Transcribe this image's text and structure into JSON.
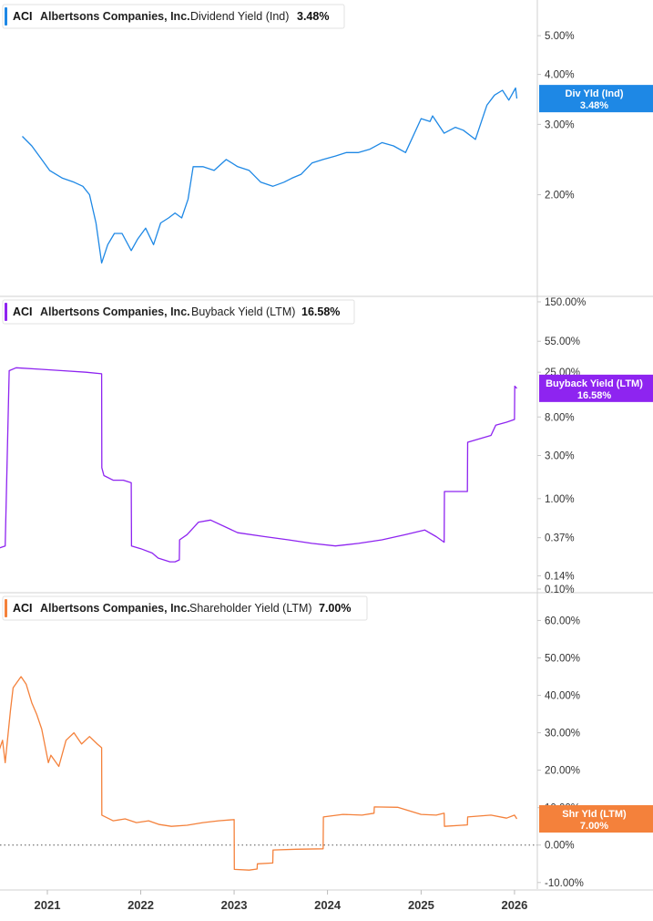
{
  "ticker": "ACI",
  "company": "Albertsons Companies, Inc.",
  "x_axis": {
    "labels": [
      "2021",
      "2022",
      "2023",
      "2024",
      "2025",
      "2026"
    ]
  },
  "chart_data": [
    {
      "type": "line",
      "title": "Dividend Yield (Ind)",
      "current_value": "3.48%",
      "color": "#1e88e5",
      "scale": "log",
      "ylim": [
        1.25,
        5.5
      ],
      "y_ticks": [
        {
          "value": 5.0,
          "label": "5.00%"
        },
        {
          "value": 4.0,
          "label": "4.00%"
        },
        {
          "value": 3.0,
          "label": "3.00%"
        },
        {
          "value": 2.0,
          "label": "2.00%"
        }
      ],
      "badge": {
        "label": "Div Yld (Ind)",
        "value": "3.48%"
      },
      "series": [
        {
          "x": [
            "2020-09-25",
            "2020-11-01",
            "2020-12-10",
            "2021-01-10",
            "2021-03-01",
            "2021-04-15",
            "2021-05-20",
            "2021-06-15",
            "2021-07-10",
            "2021-08-01",
            "2021-08-25",
            "2021-09-20",
            "2021-10-20",
            "2021-11-25",
            "2021-12-20",
            "2022-01-20",
            "2022-02-20",
            "2022-03-20",
            "2022-04-20",
            "2022-05-15",
            "2022-06-10",
            "2022-07-05",
            "2022-07-25",
            "2022-09-01",
            "2022-10-15",
            "2022-12-01",
            "2023-01-15",
            "2023-03-01",
            "2023-04-15",
            "2023-06-01",
            "2023-07-15",
            "2023-08-15",
            "2023-09-20",
            "2023-11-01",
            "2023-12-15",
            "2024-02-01",
            "2024-03-15",
            "2024-05-01",
            "2024-06-15",
            "2024-08-01",
            "2024-09-15",
            "2024-11-01",
            "2025-01-01",
            "2025-02-05",
            "2025-02-15",
            "2025-04-01",
            "2025-05-15",
            "2025-06-15",
            "2025-08-01",
            "2025-09-15",
            "2025-10-15",
            "2025-11-15",
            "2025-12-10",
            "2026-01-05",
            "2026-01-10"
          ],
          "y": [
            2.8,
            2.65,
            2.45,
            2.3,
            2.2,
            2.15,
            2.1,
            2.0,
            1.7,
            1.35,
            1.5,
            1.6,
            1.6,
            1.45,
            1.55,
            1.65,
            1.5,
            1.7,
            1.75,
            1.8,
            1.75,
            1.95,
            2.35,
            2.35,
            2.3,
            2.45,
            2.35,
            2.3,
            2.15,
            2.1,
            2.15,
            2.2,
            2.25,
            2.4,
            2.45,
            2.5,
            2.55,
            2.55,
            2.6,
            2.7,
            2.65,
            2.55,
            3.1,
            3.05,
            3.15,
            2.85,
            2.95,
            2.9,
            2.75,
            3.35,
            3.55,
            3.65,
            3.45,
            3.7,
            3.48
          ]
        }
      ]
    },
    {
      "type": "line",
      "title": "Buyback Yield (LTM)",
      "current_value": "16.58%",
      "color": "#8e24f0",
      "scale": "log",
      "ylim": [
        0.1,
        150
      ],
      "y_ticks": [
        {
          "value": 150,
          "label": "150.00%"
        },
        {
          "value": 55,
          "label": "55.00%"
        },
        {
          "value": 25,
          "label": "25.00%"
        },
        {
          "value": 8,
          "label": "8.00%"
        },
        {
          "value": 3,
          "label": "3.00%"
        },
        {
          "value": 1,
          "label": "1.00%"
        },
        {
          "value": 0.37,
          "label": "0.37%"
        },
        {
          "value": 0.14,
          "label": "0.14%"
        },
        {
          "value": 0.1,
          "label": "0.10%"
        }
      ],
      "badge": {
        "label": "Buyback Yield (LTM)",
        "value": "16.58%"
      },
      "series": [
        {
          "x": [
            "2020-06-20",
            "2020-07-20",
            "2020-08-05",
            "2020-09-01",
            "2020-12-01",
            "2021-03-01",
            "2021-06-01",
            "2021-08-01",
            "2021-08-02",
            "2021-08-10",
            "2021-09-15",
            "2021-10-25",
            "2021-11-25",
            "2021-11-26",
            "2022-01-01",
            "2022-02-15",
            "2022-03-10",
            "2022-04-25",
            "2022-05-15",
            "2022-06-01",
            "2022-06-02",
            "2022-07-01",
            "2022-08-15",
            "2022-10-01",
            "2023-01-15",
            "2023-05-01",
            "2023-08-01",
            "2023-11-01",
            "2024-02-01",
            "2024-05-01",
            "2024-08-01",
            "2024-11-01",
            "2025-01-15",
            "2025-03-01",
            "2025-04-01",
            "2025-04-02",
            "2025-07-01",
            "2025-07-02",
            "2025-10-01",
            "2025-10-20",
            "2025-12-01",
            "2026-01-01",
            "2026-01-02",
            "2026-01-10"
          ],
          "y": [
            0.28,
            0.3,
            26,
            28,
            27,
            26,
            25,
            24,
            2.2,
            1.8,
            1.6,
            1.6,
            1.5,
            0.3,
            0.28,
            0.25,
            0.22,
            0.2,
            0.2,
            0.21,
            0.35,
            0.4,
            0.55,
            0.58,
            0.42,
            0.38,
            0.35,
            0.32,
            0.3,
            0.32,
            0.35,
            0.4,
            0.45,
            0.38,
            0.33,
            1.2,
            1.2,
            4.2,
            5.0,
            6.5,
            7.0,
            7.5,
            17.5,
            16.58
          ]
        }
      ]
    },
    {
      "type": "line",
      "title": "Shareholder Yield (LTM)",
      "current_value": "7.00%",
      "color": "#f4813b",
      "scale": "linear",
      "ylim": [
        -12,
        64
      ],
      "y_ticks": [
        {
          "value": 60,
          "label": "60.00%"
        },
        {
          "value": 50,
          "label": "50.00%"
        },
        {
          "value": 40,
          "label": "40.00%"
        },
        {
          "value": 30,
          "label": "30.00%"
        },
        {
          "value": 20,
          "label": "20.00%"
        },
        {
          "value": 10,
          "label": "10.00%"
        },
        {
          "value": 0,
          "label": "0.00%"
        },
        {
          "value": -10,
          "label": "-10.00%"
        }
      ],
      "zero_line": 0,
      "badge": {
        "label": "Shr Yld (LTM)",
        "value": "7.00%"
      },
      "series": [
        {
          "x": [
            "2020-06-20",
            "2020-07-10",
            "2020-07-20",
            "2020-08-10",
            "2020-08-20",
            "2020-09-20",
            "2020-10-10",
            "2020-11-01",
            "2020-11-20",
            "2020-12-10",
            "2021-01-05",
            "2021-01-15",
            "2021-02-15",
            "2021-03-15",
            "2021-04-15",
            "2021-05-15",
            "2021-06-15",
            "2021-07-15",
            "2021-08-01",
            "2021-08-02",
            "2021-09-15",
            "2021-11-01",
            "2021-12-15",
            "2022-02-01",
            "2022-03-15",
            "2022-05-01",
            "2022-07-01",
            "2022-09-01",
            "2022-11-01",
            "2023-01-01",
            "2023-01-02",
            "2023-03-01",
            "2023-04-01",
            "2023-04-02",
            "2023-06-01",
            "2023-06-02",
            "2023-09-01",
            "2023-12-15",
            "2023-12-16",
            "2024-03-01",
            "2024-05-15",
            "2024-07-01",
            "2024-07-02",
            "2024-10-01",
            "2025-01-01",
            "2025-03-01",
            "2025-04-01",
            "2025-04-02",
            "2025-07-01",
            "2025-07-02",
            "2025-10-01",
            "2025-12-01",
            "2026-01-01",
            "2026-01-10"
          ],
          "y": [
            24,
            28,
            22,
            36,
            42,
            45,
            43,
            38,
            35,
            31,
            22,
            24,
            21,
            28,
            30,
            27,
            29,
            27,
            26,
            8,
            6.5,
            7,
            6,
            6.5,
            5.5,
            5,
            5.3,
            6,
            6.5,
            6.8,
            -6.5,
            -6.7,
            -6.4,
            -5,
            -4.8,
            -1.3,
            -1.1,
            -1.0,
            7.5,
            8.2,
            8.0,
            8.5,
            10.2,
            10.1,
            8.2,
            8.0,
            8.5,
            5.0,
            5.4,
            7.5,
            8.0,
            7.2,
            8.0,
            7.0
          ]
        }
      ]
    }
  ]
}
